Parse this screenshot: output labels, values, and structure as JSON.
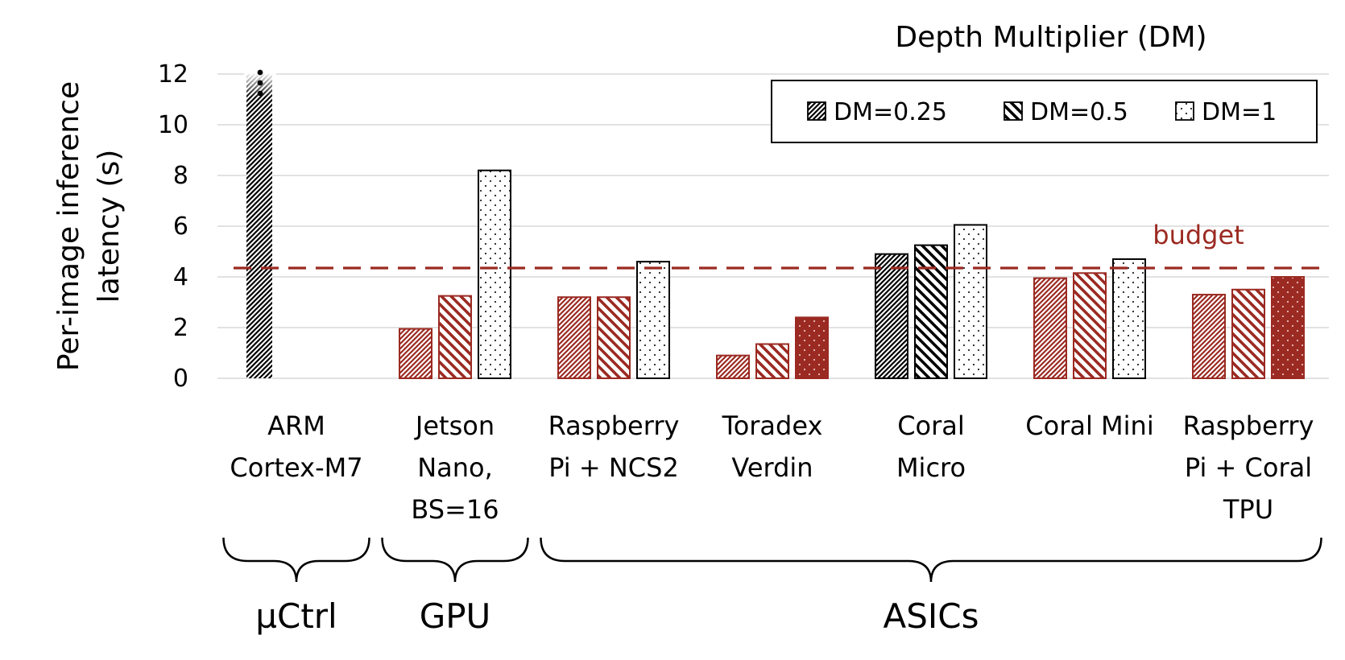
{
  "chart_data": {
    "type": "bar",
    "ylabel_lines": [
      "Per-image inference",
      "latency (s)"
    ],
    "ylim": [
      0,
      12
    ],
    "yticks": [
      0,
      2,
      4,
      6,
      8,
      10,
      12
    ],
    "grid": true,
    "legend": {
      "title": "Depth Multiplier (DM)",
      "placement": "top-right",
      "entries": [
        "DM=0.25",
        "DM=0.5",
        "DM=1"
      ]
    },
    "categories": [
      {
        "lines": [
          "ARM",
          "Cortex-M7"
        ],
        "highlight": [
          false,
          false,
          false
        ]
      },
      {
        "lines": [
          "Jetson",
          "Nano,",
          "BS=16"
        ],
        "highlight": [
          true,
          true,
          false
        ]
      },
      {
        "lines": [
          "Raspberry",
          "Pi + NCS2"
        ],
        "highlight": [
          true,
          true,
          false
        ]
      },
      {
        "lines": [
          "Toradex",
          "Verdin"
        ],
        "highlight": [
          true,
          true,
          true
        ]
      },
      {
        "lines": [
          "Coral",
          "Micro"
        ],
        "highlight": [
          false,
          false,
          false
        ]
      },
      {
        "lines": [
          "Coral Mini"
        ],
        "highlight": [
          true,
          true,
          false
        ]
      },
      {
        "lines": [
          "Raspberry",
          "Pi + Coral",
          "TPU"
        ],
        "highlight": [
          true,
          true,
          true
        ]
      }
    ],
    "series": [
      {
        "name": "DM=0.25",
        "values": [
          12,
          1.95,
          3.2,
          0.9,
          4.9,
          3.95,
          3.3
        ]
      },
      {
        "name": "DM=0.5",
        "values": [
          null,
          3.25,
          3.2,
          1.35,
          5.25,
          4.15,
          3.5
        ]
      },
      {
        "name": "DM=1",
        "values": [
          null,
          8.2,
          4.6,
          2.4,
          6.05,
          4.7,
          4.0
        ]
      }
    ],
    "truncated_bar": {
      "category_index": 0,
      "series_index": 0
    },
    "budget": {
      "value": 4.35,
      "label": "budget"
    },
    "groups": [
      {
        "label": "µCtrl",
        "start": 0,
        "end": 0
      },
      {
        "label": "GPU",
        "start": 1,
        "end": 1
      },
      {
        "label": "ASICs",
        "start": 2,
        "end": 6
      }
    ],
    "colors": {
      "highlight": "#9b2a22",
      "plain": "#000000",
      "grid": "#d9d9d9",
      "budget": "#9b2a22"
    }
  }
}
